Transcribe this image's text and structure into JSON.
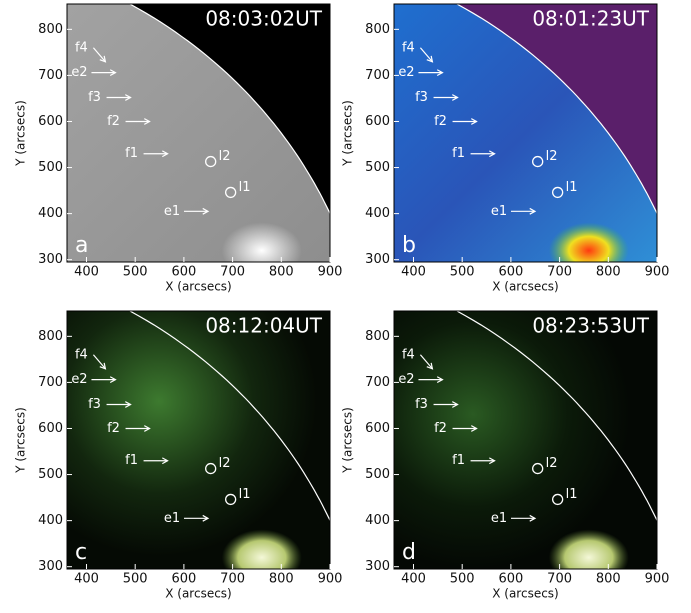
{
  "chart_data": [
    {
      "type": "image",
      "timestamp": "08:03:02UT",
      "panel_label": "a",
      "xlabel": "X (arcsecs)",
      "ylabel": "Y (arcsecs)",
      "xlim": [
        360,
        900
      ],
      "ylim": [
        295,
        855
      ],
      "xticks": [
        400,
        500,
        600,
        700,
        800,
        900
      ],
      "yticks": [
        300,
        400,
        500,
        600,
        700,
        800
      ],
      "annotations": [
        {
          "text": "f4",
          "x": 406,
          "y": 760
        },
        {
          "text": "e2",
          "x": 402,
          "y": 706
        },
        {
          "text": "f3",
          "x": 433,
          "y": 652
        },
        {
          "text": "f2",
          "x": 472,
          "y": 600
        },
        {
          "text": "f1",
          "x": 509,
          "y": 530
        },
        {
          "text": "e1",
          "x": 592,
          "y": 405
        },
        {
          "text": "l2",
          "x": 655,
          "y": 513
        },
        {
          "text": "l1",
          "x": 696,
          "y": 446
        }
      ]
    },
    {
      "type": "image",
      "timestamp": "08:01:23UT",
      "panel_label": "b",
      "xlabel": "X (arcsecs)",
      "ylabel": "Y (arcsecs)",
      "xlim": [
        360,
        900
      ],
      "ylim": [
        295,
        855
      ],
      "xticks": [
        400,
        500,
        600,
        700,
        800,
        900
      ],
      "yticks": [
        300,
        400,
        500,
        600,
        700,
        800
      ],
      "annotations": [
        {
          "text": "f4",
          "x": 406,
          "y": 760
        },
        {
          "text": "e2",
          "x": 402,
          "y": 706
        },
        {
          "text": "f3",
          "x": 433,
          "y": 652
        },
        {
          "text": "f2",
          "x": 472,
          "y": 600
        },
        {
          "text": "f1",
          "x": 509,
          "y": 530
        },
        {
          "text": "e1",
          "x": 592,
          "y": 405
        },
        {
          "text": "l2",
          "x": 655,
          "y": 513
        },
        {
          "text": "l1",
          "x": 696,
          "y": 446
        }
      ]
    },
    {
      "type": "image",
      "timestamp": "08:12:04UT",
      "panel_label": "c",
      "xlabel": "X (arcsecs)",
      "ylabel": "Y (arcsecs)",
      "xlim": [
        360,
        900
      ],
      "ylim": [
        295,
        855
      ],
      "xticks": [
        400,
        500,
        600,
        700,
        800,
        900
      ],
      "yticks": [
        300,
        400,
        500,
        600,
        700,
        800
      ],
      "annotations": [
        {
          "text": "f4",
          "x": 406,
          "y": 760
        },
        {
          "text": "e2",
          "x": 402,
          "y": 706
        },
        {
          "text": "f3",
          "x": 433,
          "y": 652
        },
        {
          "text": "f2",
          "x": 472,
          "y": 600
        },
        {
          "text": "f1",
          "x": 509,
          "y": 530
        },
        {
          "text": "e1",
          "x": 592,
          "y": 405
        },
        {
          "text": "l2",
          "x": 655,
          "y": 513
        },
        {
          "text": "l1",
          "x": 696,
          "y": 446
        }
      ]
    },
    {
      "type": "image",
      "timestamp": "08:23:53UT",
      "panel_label": "d",
      "xlabel": "X (arcsecs)",
      "ylabel": "Y (arcsecs)",
      "xlim": [
        360,
        900
      ],
      "ylim": [
        295,
        855
      ],
      "xticks": [
        400,
        500,
        600,
        700,
        800,
        900
      ],
      "yticks": [
        300,
        400,
        500,
        600,
        700,
        800
      ],
      "annotations": [
        {
          "text": "f4",
          "x": 406,
          "y": 760
        },
        {
          "text": "e2",
          "x": 402,
          "y": 706
        },
        {
          "text": "f3",
          "x": 433,
          "y": 652
        },
        {
          "text": "f2",
          "x": 472,
          "y": 600
        },
        {
          "text": "f1",
          "x": 509,
          "y": 530
        },
        {
          "text": "e1",
          "x": 592,
          "y": 405
        },
        {
          "text": "l2",
          "x": 655,
          "y": 513
        },
        {
          "text": "l1",
          "x": 696,
          "y": 446
        }
      ]
    }
  ]
}
